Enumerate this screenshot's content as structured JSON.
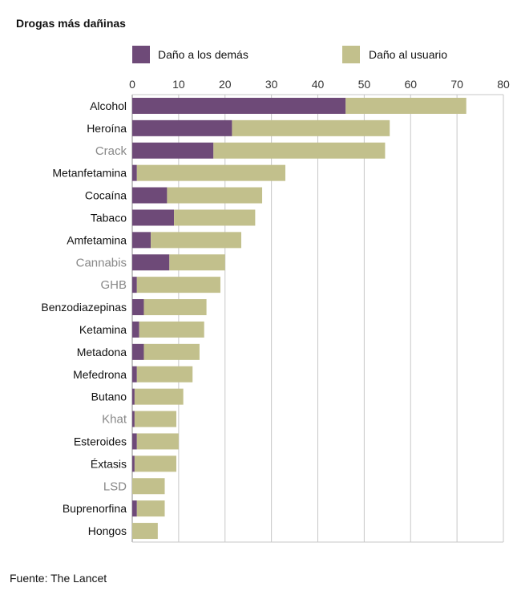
{
  "chart_data": {
    "type": "bar",
    "orientation": "horizontal",
    "stacked": true,
    "title": "Drogas más dañinas",
    "xlim": [
      0,
      80
    ],
    "xticks": [
      0,
      10,
      20,
      30,
      40,
      50,
      60,
      70,
      80
    ],
    "grid": true,
    "legend_position": "top",
    "source": "Fuente: The Lancet",
    "categories": [
      "Alcohol",
      "Heroína",
      "Crack",
      "Metanfetamina",
      "Cocaína",
      "Tabaco",
      "Amfetamina",
      "Cannabis",
      "GHB",
      "Benzodiazepinas",
      "Ketamina",
      "Metadona",
      "Mefedrona",
      "Butano",
      "Khat",
      "Esteroides",
      "Éxtasis",
      "LSD",
      "Buprenorfina",
      "Hongos"
    ],
    "category_styles": [
      "dark",
      "dark",
      "light",
      "dark",
      "dark",
      "dark",
      "dark",
      "light",
      "light",
      "dark",
      "dark",
      "dark",
      "dark",
      "dark",
      "light",
      "dark",
      "dark",
      "light",
      "dark",
      "dark"
    ],
    "series": [
      {
        "name": "Daño a los demás",
        "color": "#6e4a78",
        "values": [
          46,
          21.5,
          17.5,
          1,
          7.5,
          9,
          4,
          8,
          1,
          2.5,
          1.5,
          2.5,
          1,
          0.5,
          0.5,
          1,
          0.5,
          0,
          1,
          0
        ]
      },
      {
        "name": "Daño al usuario",
        "color": "#c2c08c",
        "values": [
          26,
          34,
          37,
          32,
          20.5,
          17.5,
          19.5,
          12,
          18,
          13.5,
          14,
          12,
          12,
          10.5,
          9,
          9,
          9,
          7,
          6,
          5.5
        ]
      }
    ]
  },
  "colors": {
    "label_dark": "#111111",
    "label_light": "#888888",
    "grid": "#c7c7c7"
  }
}
